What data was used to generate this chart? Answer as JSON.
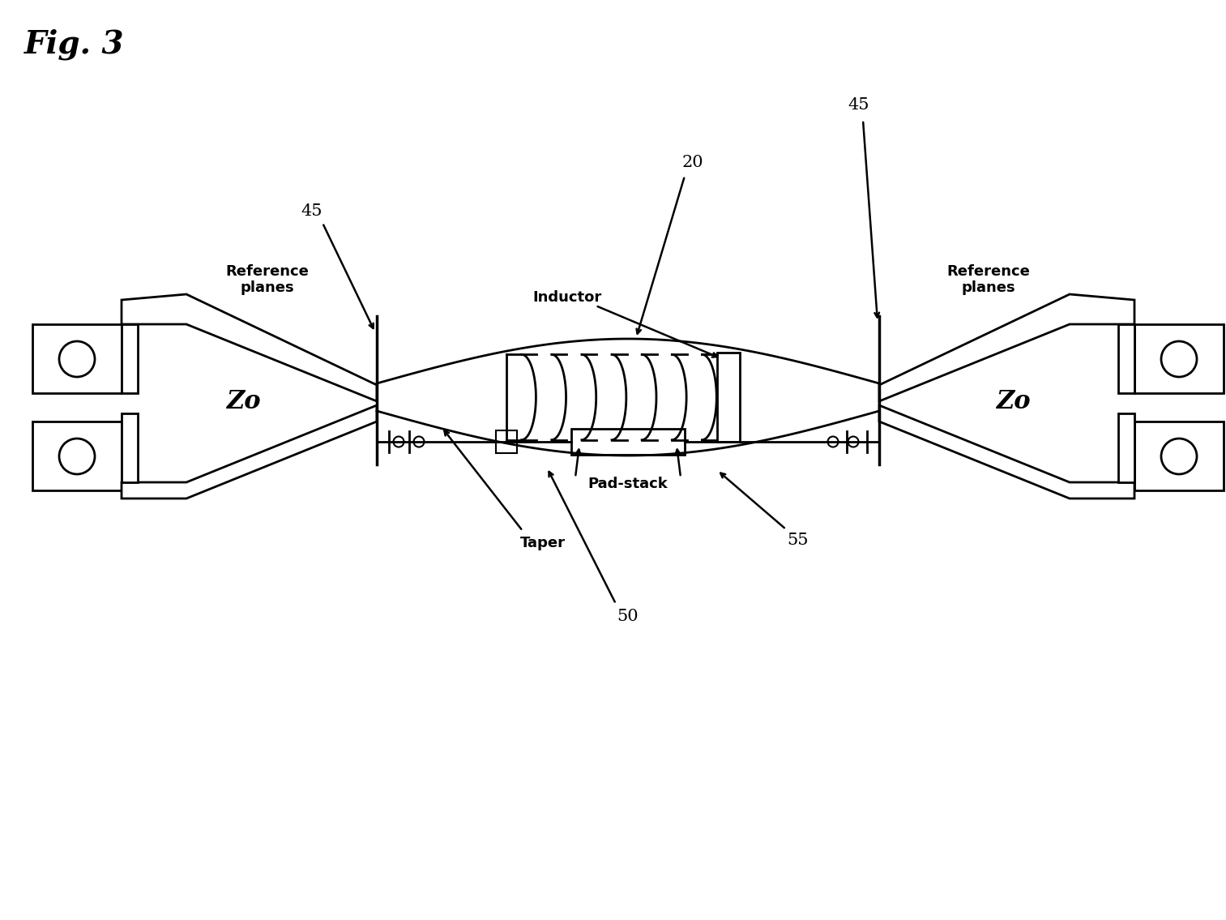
{
  "background_color": "#ffffff",
  "line_color": "#000000",
  "fig_width": 15.13,
  "fig_height": 11.35,
  "labels": {
    "fig_title": "Fig. 3",
    "ref_planes_left": "Reference\nplanes",
    "ref_planes_right": "Reference\nplanes",
    "zo_left": "Zo",
    "zo_right": "Zo",
    "inductor": "Inductor",
    "pad_stack": "Pad-stack",
    "taper": "Taper",
    "num_20": "20",
    "num_45_left": "45",
    "num_45_top": "45",
    "num_50": "50",
    "num_55": "55"
  }
}
